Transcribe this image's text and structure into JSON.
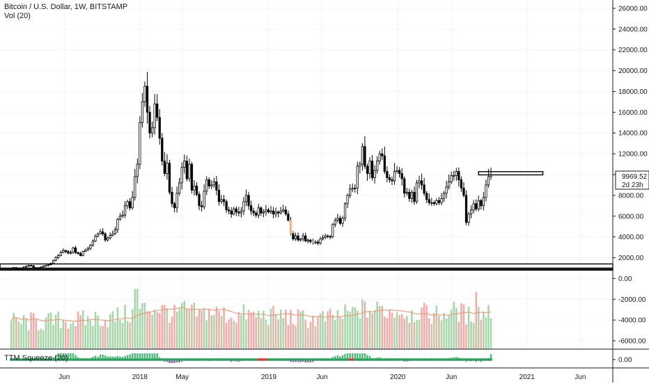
{
  "header": {
    "title": "Bitcoin / U.S. Dollar, 1W, BITSTAMP",
    "volume_label": "Vol (20)",
    "ttm_label": "TTM Squeeze (20)"
  },
  "price_badge": {
    "value": "9969.52",
    "countdown": "2d 23h"
  },
  "colors": {
    "up_candle": "#ffffff",
    "down_candle": "#000000",
    "candle_border": "#000000",
    "highlight_candle": "#f0b48c",
    "volume_up": "#a5d6a7",
    "volume_down": "#f7a9a7",
    "volume_ma": "#ef8f6a",
    "ttm_green": "#26a65b",
    "ttm_dark": "#1b5e20",
    "ttm_red": "#e53935",
    "grid": "#f0f3fa"
  },
  "chart_data": {
    "type": "candlestick",
    "y_axis": {
      "ticks": [
        26000,
        24000,
        22000,
        20000,
        18000,
        16000,
        14000,
        12000,
        10000,
        8000,
        6000,
        4000,
        2000,
        0,
        -2000,
        -4000,
        -6000
      ],
      "tick_labels": [
        "26000.00",
        "24000.00",
        "22000.00",
        "20000.00",
        "18000.00",
        "16000.00",
        "14000.00",
        "12000.00",
        "",
        "8000.00",
        "6000.00",
        "4000.00",
        "2000.00",
        "0.00",
        "-2000.00",
        "-4000.00",
        "-6000.00"
      ],
      "range": [
        -6800,
        26800
      ]
    },
    "x_axis": {
      "labels": [
        "Jun",
        "2018",
        "May",
        "2019",
        "Jun",
        "2020",
        "Jun",
        "2021",
        "Jun"
      ],
      "label_dates": [
        "2017-06-01",
        "2018-01-01",
        "2018-05-01",
        "2019-01-01",
        "2019-06-01",
        "2020-01-01",
        "2020-06-01",
        "2021-01-01",
        "2021-06-01"
      ],
      "range": [
        "2016-12-01",
        "2021-09-01"
      ]
    },
    "candles": {
      "start_date": "2017-01-02",
      "interval": "1W",
      "close": [
        1000,
        1050,
        900,
        920,
        1010,
        1100,
        1180,
        1260,
        1230,
        1050,
        1000,
        1040,
        1100,
        1210,
        1250,
        1330,
        1450,
        1750,
        2000,
        2200,
        2500,
        2700,
        2600,
        2450,
        2500,
        2950,
        2500,
        2400,
        2200,
        2600,
        2750,
        2900,
        3200,
        3600,
        4050,
        4300,
        4500,
        4300,
        3700,
        3900,
        4150,
        4300,
        4700,
        5700,
        6000,
        6100,
        7000,
        7400,
        6800,
        7800,
        9800,
        11000,
        15000,
        17000,
        18500,
        16000,
        14000,
        14500,
        16800,
        15500,
        13500,
        11300,
        10100,
        11100,
        8300,
        7200,
        6800,
        8200,
        9200,
        10700,
        11300,
        9600,
        11000,
        8500,
        8900,
        8100,
        7000,
        6900,
        8400,
        9500,
        8900,
        9000,
        9300,
        8500,
        7400,
        7600,
        7400,
        6600,
        6500,
        6200,
        6700,
        6400,
        6300,
        6500,
        7400,
        8000,
        7000,
        6500,
        6300,
        6100,
        6800,
        6300,
        6400,
        6600,
        6400,
        6500,
        6200,
        6400,
        6300,
        6500,
        6600,
        6200,
        5600,
        4300,
        3800,
        4100,
        3700,
        3800,
        4100,
        3600,
        3700,
        3550,
        3500,
        3500,
        3400,
        3800,
        3950,
        4100,
        4050,
        4000,
        5200,
        5600,
        5800,
        5300,
        5800,
        7200,
        8000,
        8600,
        8700,
        8700,
        10800,
        11000,
        12700,
        10800,
        10100,
        11300,
        9700,
        10400,
        11300,
        12000,
        11800,
        10300,
        9700,
        9500,
        9400,
        10300,
        10400,
        10100,
        9600,
        8200,
        8300,
        7700,
        8300,
        7400,
        9200,
        9400,
        9000,
        8200,
        7600,
        7300,
        7300,
        7200,
        7500,
        7300,
        7700,
        8200,
        8800,
        9300,
        9900,
        9900,
        10300,
        9500,
        8700,
        8000,
        5400,
        6200,
        6600,
        7200,
        6700,
        7500,
        7000,
        7800,
        9000,
        9800,
        9969
      ],
      "highlighted_weeks": [
        113,
        122
      ]
    },
    "volume": {
      "ma_period": 20,
      "level_range": [
        -6800,
        0
      ]
    },
    "ttm_squeeze": {
      "period": 20,
      "zero_line": 0,
      "tick_label": "0.00"
    },
    "annotations": [
      {
        "type": "rectangle",
        "label": "resistance zone",
        "from_week": 189,
        "to": "2021-02-15",
        "y_top": 10280,
        "y_bottom": 9970
      },
      {
        "type": "rectangle",
        "label": "support zone top",
        "from": "2016-12-01",
        "to": "2021-09-01",
        "y_top": 1400,
        "y_bottom": 1000
      },
      {
        "type": "rectangle",
        "label": "support zone bottom",
        "from": "2016-12-01",
        "to": "2021-09-01",
        "y_top": 900,
        "y_bottom": 800
      }
    ]
  }
}
